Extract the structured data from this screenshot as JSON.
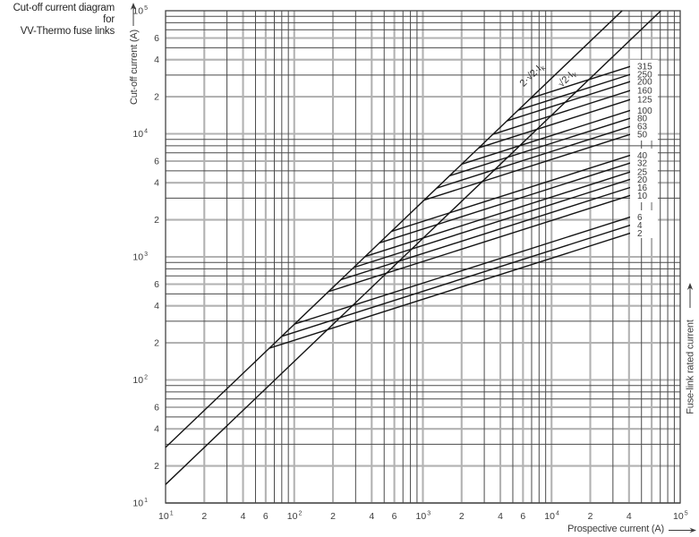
{
  "title": {
    "line1": "Cut-off current diagram for",
    "line2": "VV-Thermo fuse links"
  },
  "axes": {
    "x_label": "Prospective current (A)",
    "y_label": "Cut-off current (A)",
    "right_label": "Fuse-link rated current"
  },
  "chart_data": {
    "type": "line",
    "scale": "log-log",
    "xlabel": "Prospective current (A)",
    "ylabel": "Cut-off current (A)",
    "right_axis_label": "Fuse-link rated current",
    "x_range": [
      10,
      100000
    ],
    "y_range": [
      10,
      100000
    ],
    "decade_exponents": [
      1,
      2,
      3,
      4,
      5
    ],
    "minor_labeled_values": [
      2,
      4,
      6
    ],
    "x_minor_labels_last_decade": [
      2,
      4
    ],
    "grid": "full log grid, majors and labeled minors heavy pale, other minors thin dark",
    "reference_lines": [
      {
        "name": "asymmetrical-peak",
        "label_text": "2·√2·I",
        "label_sub": "k",
        "factor": 2.828
      },
      {
        "name": "symmetrical-peak",
        "label_text": "√2·I",
        "label_sub": "k",
        "factor": 1.414
      }
    ],
    "fuse_slope_decades_per_decade": 0.3333,
    "line_end_prospective_a": 41000,
    "fuse_lines": [
      {
        "rating_a": "315",
        "cutoff_a_at_end": 35300
      },
      {
        "rating_a": "250",
        "cutoff_a_at_end": 30400
      },
      {
        "rating_a": "200",
        "cutoff_a_at_end": 26600
      },
      {
        "rating_a": "160",
        "cutoff_a_at_end": 22500
      },
      {
        "rating_a": "125",
        "cutoff_a_at_end": 19000
      },
      {
        "rating_a": "100",
        "cutoff_a_at_end": 15500
      },
      {
        "rating_a": "80",
        "cutoff_a_at_end": 13400
      },
      {
        "rating_a": "63",
        "cutoff_a_at_end": 11500
      },
      {
        "rating_a": "50",
        "cutoff_a_at_end": 9900
      },
      {
        "rating_a": "40",
        "cutoff_a_at_end": 6700
      },
      {
        "rating_a": "32",
        "cutoff_a_at_end": 5800
      },
      {
        "rating_a": "25",
        "cutoff_a_at_end": 4900
      },
      {
        "rating_a": "20",
        "cutoff_a_at_end": 4270
      },
      {
        "rating_a": "16",
        "cutoff_a_at_end": 3670
      },
      {
        "rating_a": "10",
        "cutoff_a_at_end": 3160
      },
      {
        "rating_a": "6",
        "cutoff_a_at_end": 2110
      },
      {
        "rating_a": "4",
        "cutoff_a_at_end": 1810
      },
      {
        "rating_a": "2",
        "cutoff_a_at_end": 1560
      }
    ],
    "colors": {
      "curve": "#141414",
      "grid_heavy": "#b2b2b2",
      "grid_thin": "#4a4a4a",
      "border": "#444444",
      "text": "#3c3c3c"
    }
  }
}
